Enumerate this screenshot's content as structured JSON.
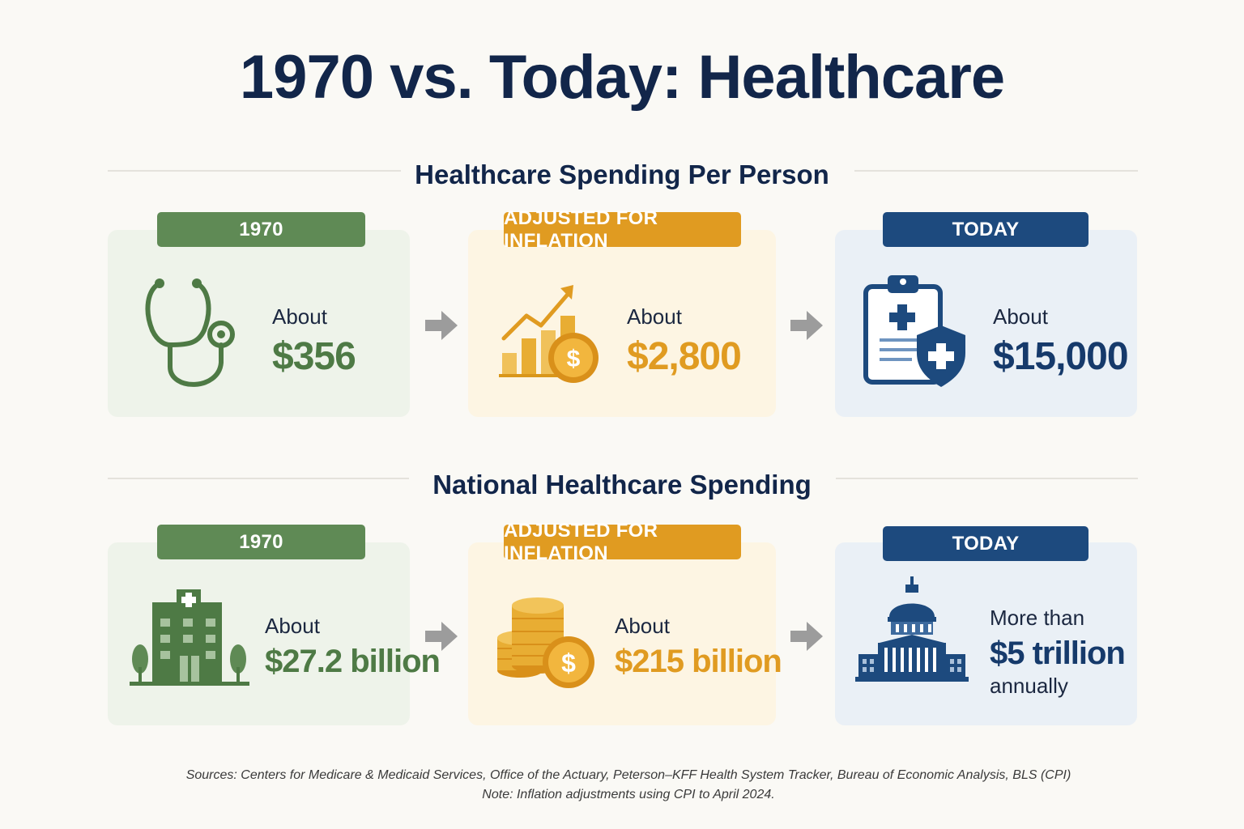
{
  "title": "1970 vs. Today: Healthcare",
  "sections": [
    {
      "heading": "Healthcare Spending Per Person",
      "cards": [
        {
          "tag": "1970",
          "label": "About",
          "value": "$356",
          "icon": "stethoscope-icon"
        },
        {
          "tag": "ADJUSTED FOR INFLATION",
          "label": "About",
          "value": "$2,800",
          "icon": "rising-chart-coin-icon"
        },
        {
          "tag": "TODAY",
          "label": "About",
          "value": "$15,000",
          "icon": "clipboard-shield-icon"
        }
      ]
    },
    {
      "heading": "National Healthcare Spending",
      "cards": [
        {
          "tag": "1970",
          "label": "About",
          "value": "$27.2 billion",
          "icon": "hospital-icon"
        },
        {
          "tag": "ADJUSTED FOR INFLATION",
          "label": "About",
          "value": "$215 billion",
          "icon": "coin-stack-icon"
        },
        {
          "tag": "TODAY",
          "label": "More than",
          "value": "$5 trillion",
          "suffix": "annually",
          "icon": "capitol-building-icon"
        }
      ]
    }
  ],
  "footer": {
    "sources": "Sources: Centers for Medicare & Medicaid Services, Office of the Actuary, Peterson–KFF Health System Tracker, Bureau of Economic Analysis, BLS (CPI)",
    "note": "Note: Inflation adjustments using CPI to April 2024."
  },
  "colors": {
    "green": "#5f8a55",
    "gold": "#e09b21",
    "blue": "#1d4a7e",
    "navy": "#12264a"
  }
}
